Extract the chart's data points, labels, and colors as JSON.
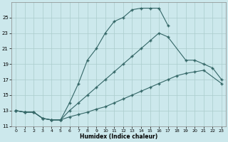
{
  "xlabel": "Humidex (Indice chaleur)",
  "bg_color": "#cce8ec",
  "line_color": "#336666",
  "grid_color": "#aacccc",
  "line1_y": [
    13.0,
    12.8,
    12.8,
    12.0,
    11.8,
    11.8,
    13.0,
    14.0,
    15.0,
    16.0,
    17.0,
    18.0,
    19.0,
    20.0,
    21.0,
    22.0,
    23.0,
    22.5,
    19.5,
    19.5,
    19.0,
    18.5,
    17.0
  ],
  "line1_x": [
    0,
    1,
    2,
    3,
    4,
    5,
    6,
    7,
    8,
    9,
    10,
    11,
    12,
    13,
    14,
    15,
    16,
    17,
    19,
    20,
    21,
    22,
    23
  ],
  "line2_y": [
    13.0,
    12.8,
    12.8,
    12.0,
    11.8,
    11.8,
    14.0,
    16.5,
    19.5,
    21.0,
    23.0,
    24.5,
    25.0,
    26.0,
    26.2,
    26.2,
    26.2,
    24.0
  ],
  "line2_x": [
    0,
    1,
    2,
    3,
    4,
    5,
    6,
    7,
    8,
    9,
    10,
    11,
    12,
    13,
    14,
    15,
    16,
    17
  ],
  "line3_y": [
    13.0,
    12.8,
    12.8,
    12.0,
    11.8,
    11.8,
    12.2,
    12.5,
    12.8,
    13.2,
    13.5,
    14.0,
    14.5,
    15.0,
    15.5,
    16.0,
    16.5,
    17.0,
    17.5,
    17.8,
    18.0,
    18.2,
    16.5
  ],
  "line3_x": [
    0,
    1,
    2,
    3,
    4,
    5,
    6,
    7,
    8,
    9,
    10,
    11,
    12,
    13,
    14,
    15,
    16,
    17,
    18,
    19,
    20,
    21,
    23
  ],
  "ylim": [
    11,
    27
  ],
  "yticks": [
    11,
    13,
    15,
    17,
    19,
    21,
    23,
    25
  ],
  "xlim": [
    -0.5,
    23.5
  ],
  "xticks": [
    0,
    1,
    2,
    3,
    4,
    5,
    6,
    7,
    8,
    9,
    10,
    11,
    12,
    13,
    14,
    15,
    16,
    17,
    18,
    19,
    20,
    21,
    22,
    23
  ]
}
